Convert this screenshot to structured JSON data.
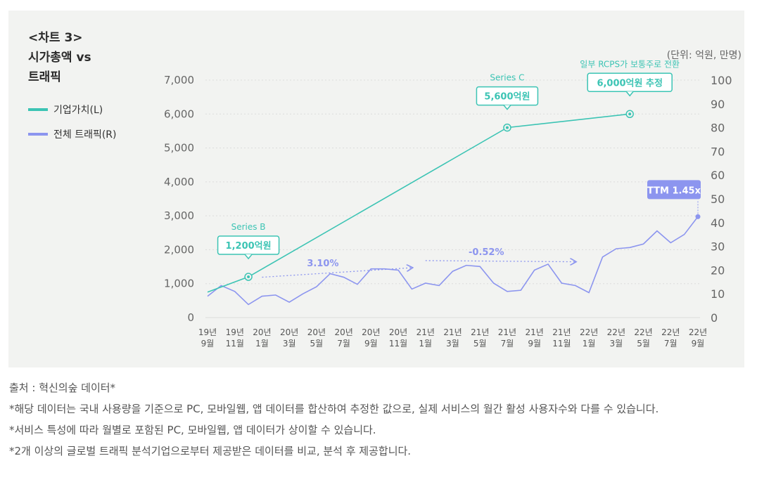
{
  "title_lines": [
    "<차트 3>",
    "시가총액 vs",
    "트래픽"
  ],
  "unit_label": "(단위: 억원, 만명)",
  "colors": {
    "left_series": "#3cc4b4",
    "right_series": "#8c95ef",
    "panel": "#f2f3f1"
  },
  "chart_data": {
    "type": "line",
    "x_labels": [
      [
        "19년",
        "9월"
      ],
      [
        "19년",
        "11월"
      ],
      [
        "20년",
        "1월"
      ],
      [
        "20년",
        "3월"
      ],
      [
        "20년",
        "5월"
      ],
      [
        "20년",
        "7월"
      ],
      [
        "20년",
        "9월"
      ],
      [
        "20년",
        "11월"
      ],
      [
        "21년",
        "1월"
      ],
      [
        "21년",
        "3월"
      ],
      [
        "21년",
        "5월"
      ],
      [
        "21년",
        "7월"
      ],
      [
        "21년",
        "9월"
      ],
      [
        "21년",
        "11월"
      ],
      [
        "22년",
        "1월"
      ],
      [
        "22년",
        "3월"
      ],
      [
        "22년",
        "5월"
      ],
      [
        "22년",
        "7월"
      ],
      [
        "22년",
        "9월"
      ]
    ],
    "y_left": {
      "min": 0,
      "max": 7000,
      "ticks": [
        "0",
        "1,000",
        "2,000",
        "3,000",
        "4,000",
        "5,000",
        "6,000",
        "7,000"
      ]
    },
    "y_right": {
      "min": 0,
      "max": 100,
      "ticks": [
        "0",
        "10",
        "20",
        "30",
        "40",
        "50",
        "60",
        "70",
        "80",
        "90",
        "100"
      ]
    },
    "series": [
      {
        "name": "기업가치(L)",
        "axis": "left",
        "x": [
          0,
          1.5,
          11,
          15.5
        ],
        "values": [
          750,
          1200,
          5600,
          6000
        ]
      },
      {
        "name": "전체 트래픽(R)",
        "axis": "right",
        "values": [
          9,
          13.5,
          11,
          5.5,
          9,
          9.5,
          6.5,
          10,
          13,
          18.5,
          17,
          14,
          20.5,
          20.5,
          20,
          12,
          14.5,
          13.5,
          19.5,
          22,
          21.5,
          14.5,
          11,
          11.5,
          20,
          22.5,
          14.5,
          13.5,
          10.5,
          25.5,
          29,
          29.5,
          31,
          36.5,
          31.5,
          35,
          42.5
        ]
      }
    ],
    "annotations": [
      {
        "label": "Series B",
        "value_label": "1,200억원",
        "x": 1.5,
        "value": 1200
      },
      {
        "label": "Series C",
        "value_label": "5,600억원",
        "x": 11,
        "value": 5600
      },
      {
        "label": "일부 RCPS가 보통주로 전환",
        "value_label": "6,000억원 추정",
        "x": 15.5,
        "value": 6000
      },
      {
        "label": "TTM 1.45x",
        "x": 18,
        "value": 42.5
      }
    ],
    "trend_labels": [
      {
        "label": "3.10%",
        "x_from": 2,
        "x_to": 7.5,
        "y_from": 17,
        "y_to": 21
      },
      {
        "label": "-0.52%",
        "x_from": 8,
        "x_to": 13.5,
        "y_from": 24,
        "y_to": 23.5
      }
    ]
  },
  "notes": [
    "출처 : 혁신의숲 데이터*",
    "*해당 데이터는 국내 사용량을 기준으로 PC, 모바일웹, 앱 데이터를 합산하여 추정한 값으로, 실제 서비스의 월간 활성 사용자수와 다를 수 있습니다.",
    "*서비스 특성에 따라 월별로 포함된 PC, 모바일웹, 앱 데이터가 상이할 수 있습니다.",
    "*2개 이상의 글로벌 트래픽 분석기업으로부터 제공받은 데이터를 비교, 분석 후 제공합니다."
  ]
}
